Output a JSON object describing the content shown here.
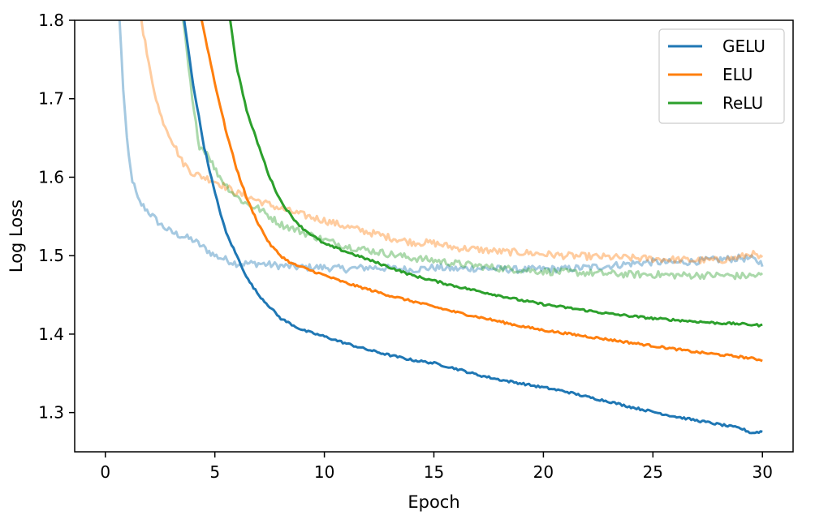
{
  "chart_data": {
    "type": "line",
    "title": "",
    "xlabel": "Epoch",
    "ylabel": "Log Loss",
    "xlim": [
      -1.4,
      31.4
    ],
    "ylim": [
      1.25,
      1.8
    ],
    "xticks": [
      0,
      5,
      10,
      15,
      20,
      25,
      30
    ],
    "xtick_labels": [
      "0",
      "5",
      "10",
      "15",
      "20",
      "25",
      "30"
    ],
    "yticks": [
      1.3,
      1.4,
      1.5,
      1.6,
      1.7,
      1.8
    ],
    "ytick_labels": [
      "1.3",
      "1.4",
      "1.5",
      "1.6",
      "1.7",
      "1.8"
    ],
    "legend": {
      "placement": "top-right",
      "entries": [
        "GELU",
        "ELU",
        "ReLU"
      ]
    },
    "grid": false,
    "series": [
      {
        "name": "GELU",
        "split": "train",
        "color": "#1f77b4",
        "alpha": 1.0,
        "x": [
          3.6,
          4.0,
          4.5,
          5.0,
          5.5,
          6.0,
          6.5,
          7.0,
          7.5,
          8.0,
          9.0,
          10.0,
          11.0,
          12.0,
          13.0,
          14.0,
          15.0,
          16.0,
          17.0,
          18.0,
          19.0,
          20.0,
          21.0,
          22.0,
          23.0,
          24.0,
          25.0,
          26.0,
          27.0,
          28.0,
          29.0,
          29.5,
          30.0
        ],
        "y": [
          1.8,
          1.72,
          1.64,
          1.58,
          1.53,
          1.5,
          1.47,
          1.45,
          1.435,
          1.42,
          1.405,
          1.397,
          1.388,
          1.38,
          1.373,
          1.367,
          1.363,
          1.356,
          1.348,
          1.342,
          1.337,
          1.332,
          1.327,
          1.32,
          1.314,
          1.307,
          1.301,
          1.295,
          1.29,
          1.285,
          1.28,
          1.274,
          1.276
        ]
      },
      {
        "name": "ELU",
        "split": "train",
        "color": "#ff7f0e",
        "alpha": 1.0,
        "x": [
          4.4,
          5.0,
          5.5,
          6.0,
          6.5,
          7.0,
          7.5,
          8.0,
          8.5,
          9.0,
          10.0,
          11.0,
          12.0,
          13.0,
          14.0,
          15.0,
          16.0,
          17.0,
          18.0,
          19.0,
          20.0,
          21.0,
          22.0,
          23.0,
          24.0,
          25.0,
          26.0,
          27.0,
          28.0,
          29.0,
          30.0
        ],
        "y": [
          1.8,
          1.72,
          1.66,
          1.61,
          1.57,
          1.54,
          1.515,
          1.5,
          1.49,
          1.485,
          1.475,
          1.465,
          1.457,
          1.449,
          1.442,
          1.435,
          1.428,
          1.422,
          1.416,
          1.41,
          1.405,
          1.401,
          1.397,
          1.393,
          1.389,
          1.385,
          1.381,
          1.377,
          1.374,
          1.371,
          1.367
        ]
      },
      {
        "name": "ReLU",
        "split": "train",
        "color": "#2ca02c",
        "alpha": 1.0,
        "x": [
          5.7,
          6.0,
          6.5,
          7.0,
          7.5,
          8.0,
          8.5,
          9.0,
          9.5,
          10.0,
          11.0,
          12.0,
          13.0,
          14.0,
          15.0,
          16.0,
          17.0,
          18.0,
          19.0,
          20.0,
          21.0,
          22.0,
          23.0,
          24.0,
          25.0,
          26.0,
          27.0,
          28.0,
          29.0,
          30.0
        ],
        "y": [
          1.8,
          1.74,
          1.68,
          1.64,
          1.6,
          1.57,
          1.55,
          1.535,
          1.525,
          1.515,
          1.505,
          1.495,
          1.485,
          1.475,
          1.468,
          1.461,
          1.455,
          1.449,
          1.443,
          1.438,
          1.434,
          1.43,
          1.426,
          1.423,
          1.42,
          1.418,
          1.416,
          1.414,
          1.413,
          1.411
        ]
      },
      {
        "name": "GELU",
        "split": "validation",
        "color": "#1f77b4",
        "alpha": 0.4,
        "x": [
          0.65,
          0.8,
          1.0,
          1.2,
          1.5,
          2.0,
          2.5,
          3.0,
          3.5,
          4.0,
          4.5,
          5.0,
          5.5,
          6.0,
          7.0,
          8.0,
          9.0,
          10.0,
          11.0,
          12.0,
          13.0,
          14.0,
          15.0,
          16.0,
          17.0,
          18.0,
          19.0,
          20.0,
          21.0,
          22.0,
          23.0,
          24.0,
          25.0,
          26.0,
          27.0,
          28.0,
          29.0,
          29.5,
          30.0
        ],
        "y": [
          1.8,
          1.72,
          1.64,
          1.6,
          1.57,
          1.555,
          1.54,
          1.53,
          1.525,
          1.52,
          1.51,
          1.5,
          1.495,
          1.49,
          1.49,
          1.487,
          1.485,
          1.485,
          1.483,
          1.485,
          1.484,
          1.482,
          1.485,
          1.483,
          1.484,
          1.483,
          1.482,
          1.483,
          1.483,
          1.485,
          1.487,
          1.49,
          1.492,
          1.491,
          1.493,
          1.495,
          1.497,
          1.496,
          1.49
        ]
      },
      {
        "name": "ELU",
        "split": "validation",
        "color": "#ff7f0e",
        "alpha": 0.4,
        "x": [
          1.65,
          2.0,
          2.5,
          3.0,
          3.5,
          4.0,
          4.5,
          5.0,
          6.0,
          7.0,
          8.0,
          9.0,
          10.0,
          11.0,
          12.0,
          13.0,
          14.0,
          15.0,
          16.0,
          17.0,
          18.0,
          19.0,
          20.0,
          21.0,
          22.0,
          23.0,
          24.0,
          25.0,
          26.0,
          27.0,
          28.0,
          29.0,
          29.5,
          30.0
        ],
        "y": [
          1.8,
          1.74,
          1.68,
          1.65,
          1.62,
          1.605,
          1.6,
          1.595,
          1.58,
          1.57,
          1.56,
          1.552,
          1.545,
          1.537,
          1.53,
          1.523,
          1.517,
          1.516,
          1.51,
          1.508,
          1.505,
          1.504,
          1.502,
          1.5,
          1.499,
          1.498,
          1.497,
          1.496,
          1.495,
          1.494,
          1.494,
          1.498,
          1.503,
          1.495
        ]
      },
      {
        "name": "ReLU",
        "split": "validation",
        "color": "#2ca02c",
        "alpha": 0.4,
        "x": [
          3.55,
          3.8,
          4.0,
          4.3,
          4.7,
          5.0,
          5.5,
          6.0,
          6.5,
          7.0,
          7.5,
          8.0,
          9.0,
          10.0,
          11.0,
          12.0,
          13.0,
          14.0,
          15.0,
          16.0,
          17.0,
          18.0,
          19.0,
          20.0,
          21.0,
          22.0,
          23.0,
          24.0,
          25.0,
          26.0,
          27.0,
          28.0,
          29.0,
          30.0
        ],
        "y": [
          1.8,
          1.74,
          1.69,
          1.64,
          1.63,
          1.61,
          1.59,
          1.575,
          1.565,
          1.56,
          1.55,
          1.54,
          1.53,
          1.52,
          1.512,
          1.507,
          1.502,
          1.497,
          1.494,
          1.49,
          1.487,
          1.484,
          1.482,
          1.48,
          1.479,
          1.478,
          1.477,
          1.476,
          1.476,
          1.475,
          1.475,
          1.475,
          1.474,
          1.475
        ]
      }
    ]
  }
}
